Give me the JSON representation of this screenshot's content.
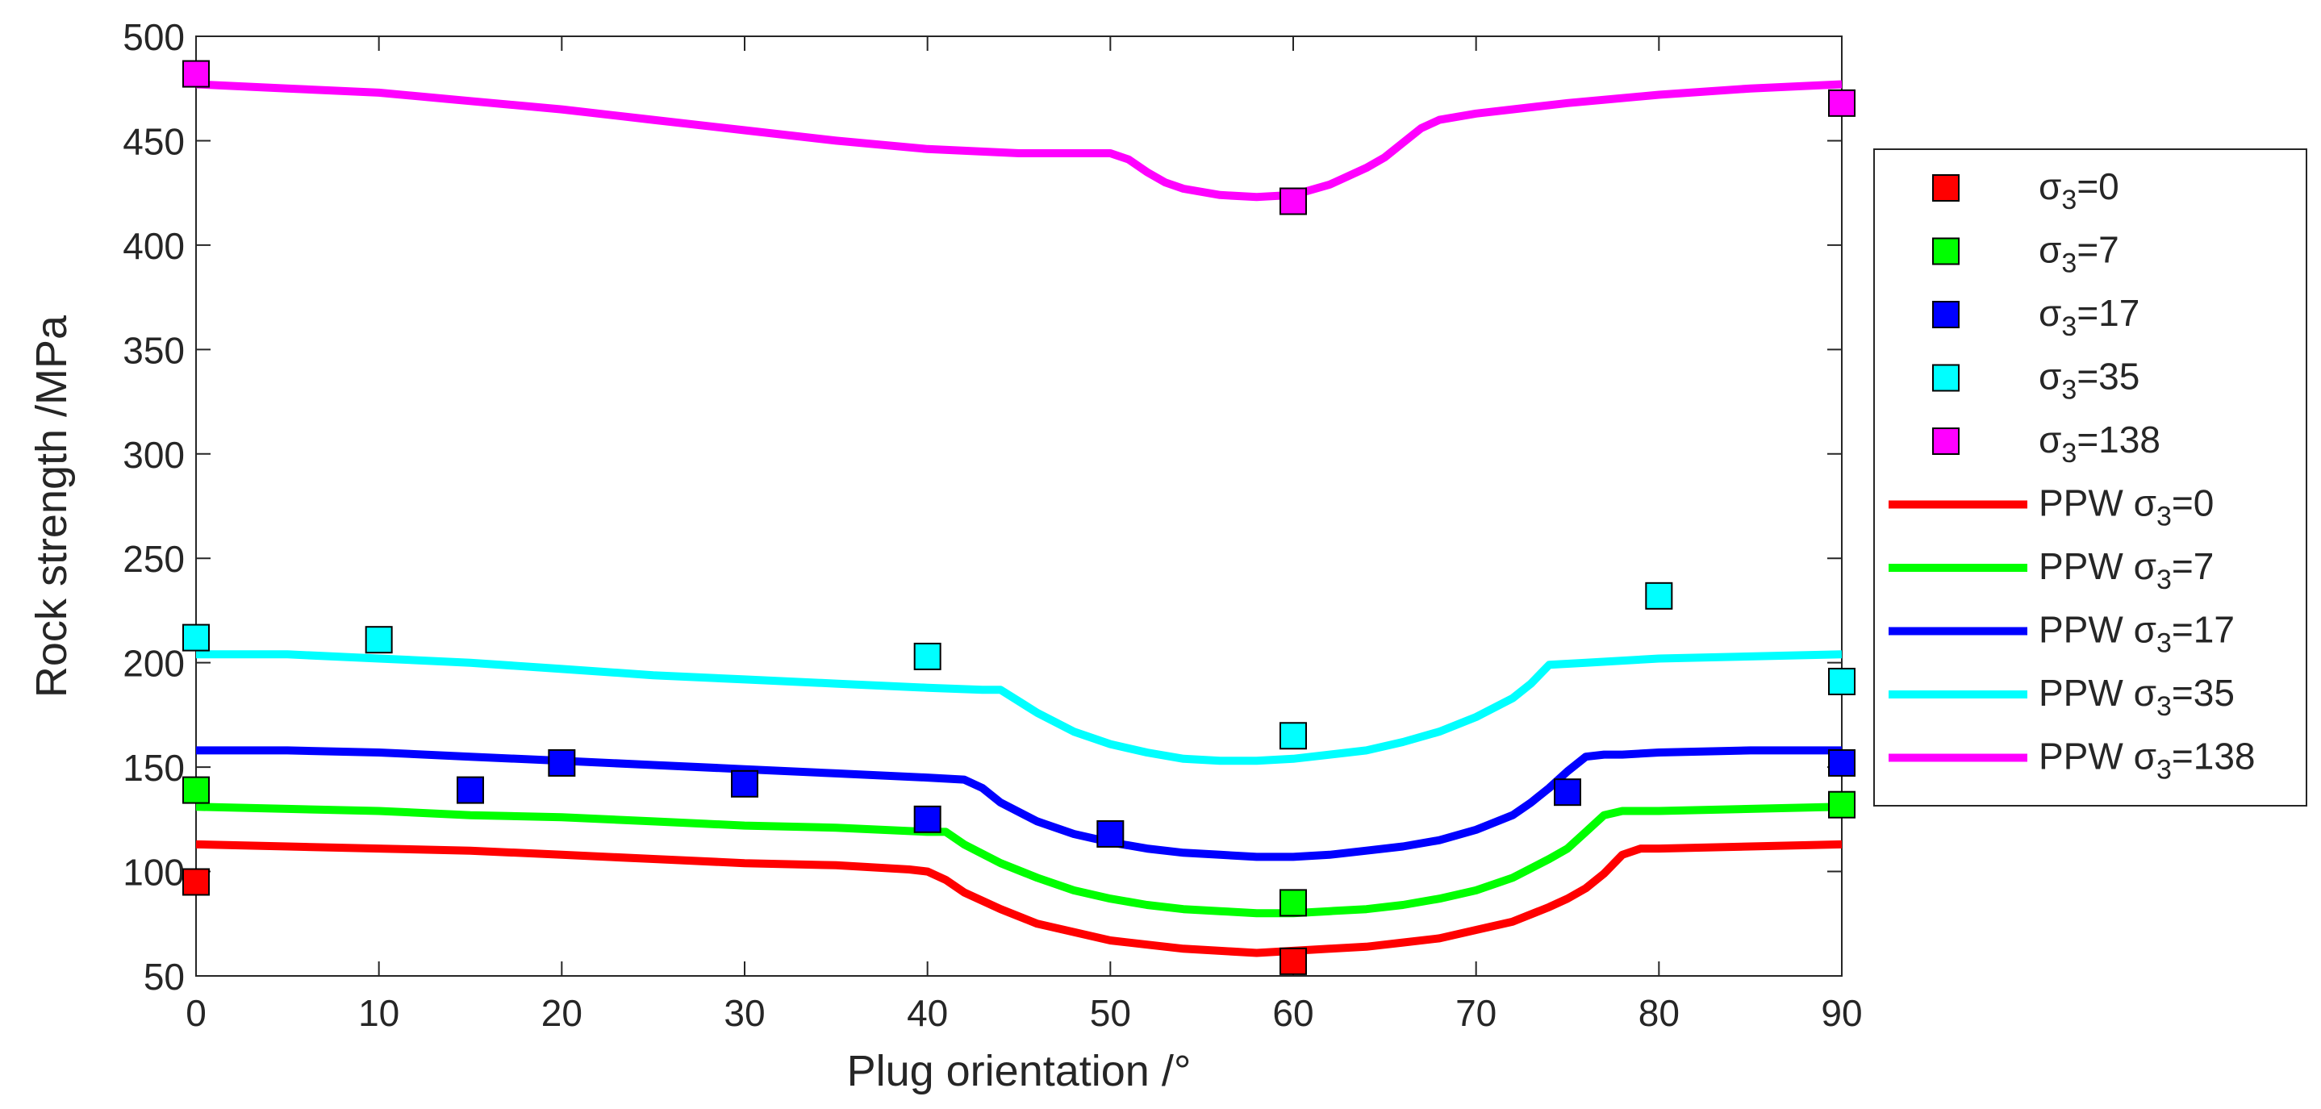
{
  "chart_data": {
    "type": "line",
    "title": "",
    "xlabel": "Plug orientation /°",
    "ylabel": "Rock strength /MPa",
    "xlim": [
      0,
      90
    ],
    "ylim": [
      50,
      500
    ],
    "xticks": [
      0,
      10,
      20,
      30,
      40,
      50,
      60,
      70,
      80,
      90
    ],
    "yticks": [
      50,
      100,
      150,
      200,
      250,
      300,
      350,
      400,
      450,
      500
    ],
    "grid": false,
    "legend_position": "outside-right",
    "scatter_series": [
      {
        "name": "σ3=0",
        "legend_prefix": "",
        "legend_sub": "3",
        "legend_suffix": "=0",
        "color": "#ff0000",
        "points": [
          [
            0,
            95
          ],
          [
            60,
            57
          ]
        ]
      },
      {
        "name": "σ3=7",
        "legend_prefix": "",
        "legend_sub": "3",
        "legend_suffix": "=7",
        "color": "#00ff00",
        "points": [
          [
            0,
            139
          ],
          [
            60,
            85
          ],
          [
            90,
            132
          ]
        ]
      },
      {
        "name": "σ3=17",
        "legend_prefix": "",
        "legend_sub": "3",
        "legend_suffix": "=17",
        "color": "#0000ff",
        "points": [
          [
            15,
            139
          ],
          [
            20,
            152
          ],
          [
            30,
            142
          ],
          [
            40,
            125
          ],
          [
            50,
            118
          ],
          [
            75,
            138
          ],
          [
            90,
            152
          ]
        ]
      },
      {
        "name": "σ3=35",
        "legend_prefix": "",
        "legend_sub": "3",
        "legend_suffix": "=35",
        "color": "#00ffff",
        "points": [
          [
            0,
            212
          ],
          [
            10,
            211
          ],
          [
            40,
            203
          ],
          [
            60,
            165
          ],
          [
            80,
            232
          ],
          [
            90,
            191
          ]
        ]
      },
      {
        "name": "σ3=138",
        "legend_prefix": "",
        "legend_sub": "3",
        "legend_suffix": "=138",
        "color": "#ff00ff",
        "points": [
          [
            0,
            482
          ],
          [
            60,
            421
          ],
          [
            90,
            468
          ]
        ]
      }
    ],
    "line_series": [
      {
        "name": "PPW σ3=0",
        "legend_prefix": "PPW ",
        "legend_sub": "3",
        "legend_suffix": "=0",
        "color": "#ff0000",
        "x": [
          0,
          5,
          10,
          15,
          20,
          25,
          30,
          35,
          39,
          40,
          41,
          42,
          44,
          46,
          48,
          50,
          52,
          54,
          56,
          58,
          60,
          62,
          64,
          66,
          68,
          70,
          72,
          74,
          75,
          76,
          77,
          78,
          79,
          80,
          85,
          90
        ],
        "y": [
          113,
          112,
          111,
          110,
          108,
          106,
          104,
          103,
          101,
          100,
          96,
          90,
          82,
          75,
          71,
          67,
          65,
          63,
          62,
          61,
          62,
          63,
          64,
          66,
          68,
          72,
          76,
          83,
          87,
          92,
          99,
          108,
          111,
          111,
          112,
          113
        ]
      },
      {
        "name": "PPW σ3=7",
        "legend_prefix": "PPW ",
        "legend_sub": "3",
        "legend_suffix": "=7",
        "color": "#00ff00",
        "x": [
          0,
          5,
          10,
          15,
          20,
          25,
          30,
          35,
          40,
          41,
          42,
          44,
          46,
          48,
          50,
          52,
          54,
          56,
          58,
          60,
          62,
          64,
          66,
          68,
          70,
          72,
          74,
          75,
          76,
          77,
          78,
          80,
          85,
          90
        ],
        "y": [
          131,
          130,
          129,
          127,
          126,
          124,
          122,
          121,
          119,
          119,
          113,
          104,
          97,
          91,
          87,
          84,
          82,
          81,
          80,
          80,
          81,
          82,
          84,
          87,
          91,
          97,
          106,
          111,
          119,
          127,
          129,
          129,
          130,
          131
        ]
      },
      {
        "name": "PPW σ3=17",
        "legend_prefix": "PPW ",
        "legend_sub": "3",
        "legend_suffix": "=17",
        "color": "#0000ff",
        "x": [
          0,
          5,
          10,
          15,
          20,
          25,
          30,
          35,
          40,
          42,
          43,
          44,
          46,
          48,
          50,
          52,
          54,
          56,
          58,
          60,
          62,
          64,
          66,
          68,
          70,
          72,
          73,
          74,
          75,
          76,
          77,
          78,
          80,
          85,
          90
        ],
        "y": [
          158,
          158,
          157,
          155,
          153,
          151,
          149,
          147,
          145,
          144,
          140,
          133,
          124,
          118,
          114,
          111,
          109,
          108,
          107,
          107,
          108,
          110,
          112,
          115,
          120,
          127,
          133,
          140,
          148,
          155,
          156,
          156,
          157,
          158,
          158
        ]
      },
      {
        "name": "PPW σ3=35",
        "legend_prefix": "PPW ",
        "legend_sub": "3",
        "legend_suffix": "=35",
        "color": "#00ffff",
        "x": [
          0,
          5,
          10,
          15,
          20,
          25,
          30,
          35,
          40,
          43,
          44,
          46,
          48,
          50,
          52,
          54,
          56,
          58,
          60,
          62,
          64,
          66,
          68,
          70,
          72,
          73,
          74,
          76,
          80,
          85,
          90
        ],
        "y": [
          204,
          204,
          202,
          200,
          197,
          194,
          192,
          190,
          188,
          187,
          187,
          176,
          167,
          161,
          157,
          154,
          153,
          153,
          154,
          156,
          158,
          162,
          167,
          174,
          183,
          190,
          199,
          200,
          202,
          203,
          204
        ]
      },
      {
        "name": "PPW σ3=138",
        "legend_prefix": "PPW ",
        "legend_sub": "3",
        "legend_suffix": "=138",
        "color": "#ff00ff",
        "x": [
          0,
          5,
          10,
          15,
          20,
          25,
          30,
          35,
          40,
          45,
          48,
          50,
          51,
          52,
          53,
          54,
          56,
          58,
          60,
          62,
          64,
          65,
          66,
          67,
          68,
          70,
          75,
          80,
          85,
          90
        ],
        "y": [
          477,
          475,
          473,
          469,
          465,
          460,
          455,
          450,
          446,
          444,
          444,
          444,
          441,
          435,
          430,
          427,
          424,
          423,
          424,
          429,
          437,
          442,
          449,
          456,
          460,
          463,
          468,
          472,
          475,
          477
        ]
      }
    ]
  }
}
